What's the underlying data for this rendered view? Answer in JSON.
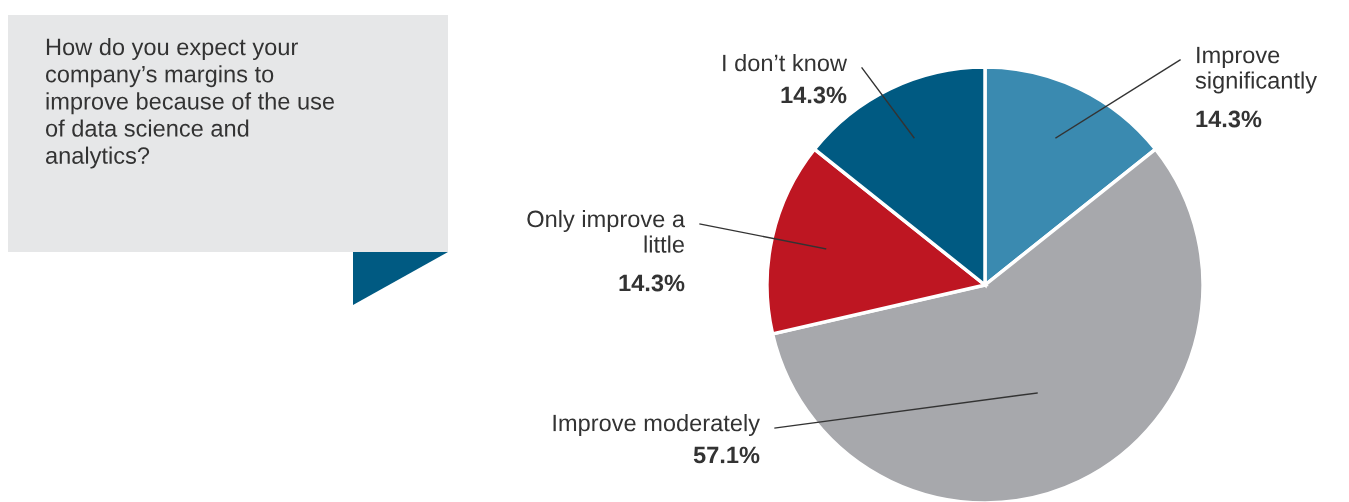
{
  "chart_data": {
    "type": "pie",
    "title": "How do you expect your company’s margins to improve because of the use of data science and analytics?",
    "categories": [
      "Improve significantly",
      "Improve moderately",
      "Only improve a little",
      "I don’t know"
    ],
    "values": [
      14.3,
      57.1,
      14.3,
      14.3
    ],
    "value_labels": [
      "14.3%",
      "57.1%",
      "14.3%",
      "14.3%"
    ],
    "colors": [
      "#3a8ab0",
      "#a7a8ac",
      "#be1622",
      "#005a82"
    ],
    "legend": false
  }
}
